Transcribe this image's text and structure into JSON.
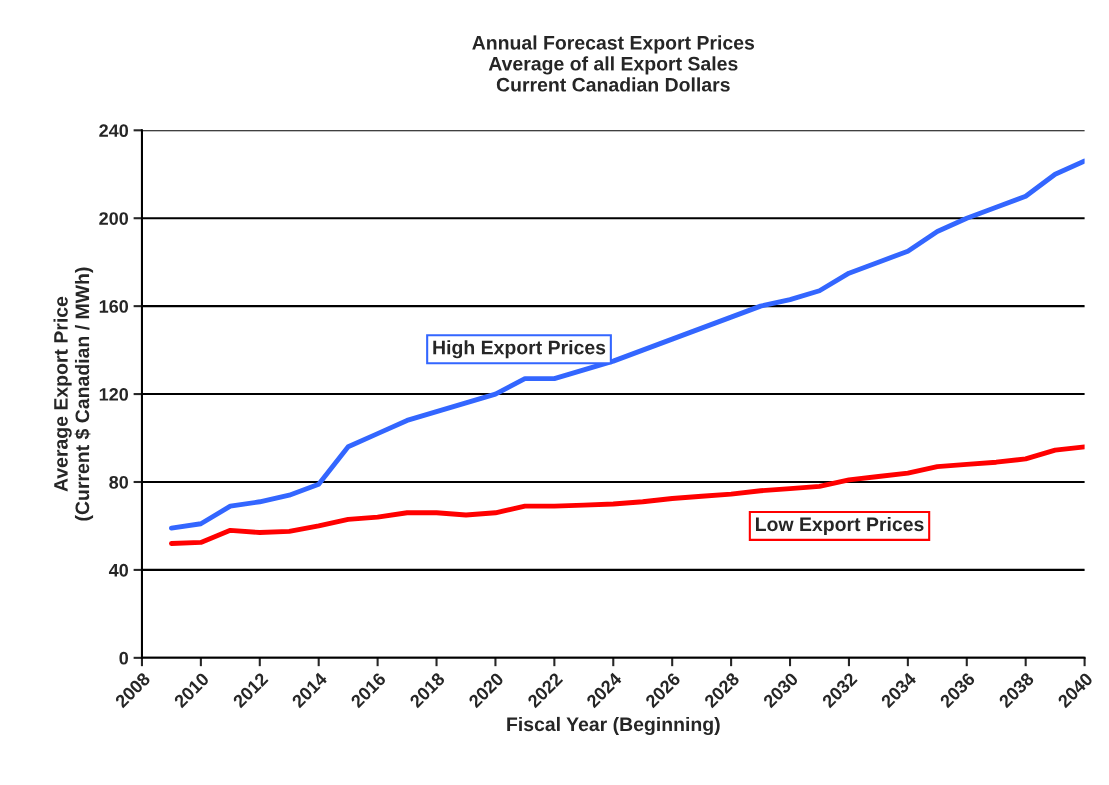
{
  "chart_data": {
    "type": "line",
    "title": "Annual Forecast Export Prices\nAverage of all Export Sales\nCurrent Canadian Dollars",
    "xlabel": "Fiscal Year (Beginning)",
    "ylabel": "Average Export Price\n(Current $ Canadian / MWh)",
    "x": [
      2009,
      2010,
      2011,
      2012,
      2013,
      2014,
      2015,
      2016,
      2017,
      2018,
      2019,
      2020,
      2021,
      2022,
      2023,
      2024,
      2025,
      2026,
      2027,
      2028,
      2029,
      2030,
      2031,
      2032,
      2033,
      2034,
      2035,
      2036,
      2037,
      2038,
      2039,
      2040
    ],
    "series": [
      {
        "name": "High Export Prices",
        "color": "#3366ff",
        "values": [
          59,
          61,
          69,
          71,
          74,
          79,
          96,
          102,
          108,
          112,
          116,
          120,
          127,
          127,
          131,
          135,
          140,
          145,
          150,
          155,
          160,
          163,
          167,
          175,
          180,
          185,
          194,
          200,
          205,
          210,
          220,
          226
        ]
      },
      {
        "name": "Low Export Prices",
        "color": "#ff0000",
        "values": [
          52,
          52.5,
          58,
          57,
          57.5,
          60,
          63,
          64,
          66,
          66,
          65,
          66,
          69,
          69,
          69.5,
          70,
          71,
          72.5,
          73.5,
          74.5,
          76,
          77,
          78,
          81,
          82.5,
          84,
          87,
          88,
          89,
          90.5,
          94.5,
          96
        ]
      }
    ],
    "xlim": [
      2008,
      2040
    ],
    "xticks": [
      2008,
      2010,
      2012,
      2014,
      2016,
      2018,
      2020,
      2022,
      2024,
      2026,
      2028,
      2030,
      2032,
      2034,
      2036,
      2038,
      2040
    ],
    "ylim": [
      0,
      240
    ],
    "yticks": [
      0,
      40,
      80,
      120,
      160,
      200,
      240
    ],
    "grid": "y",
    "legend": false,
    "marker": "none",
    "line_style": "solid"
  }
}
